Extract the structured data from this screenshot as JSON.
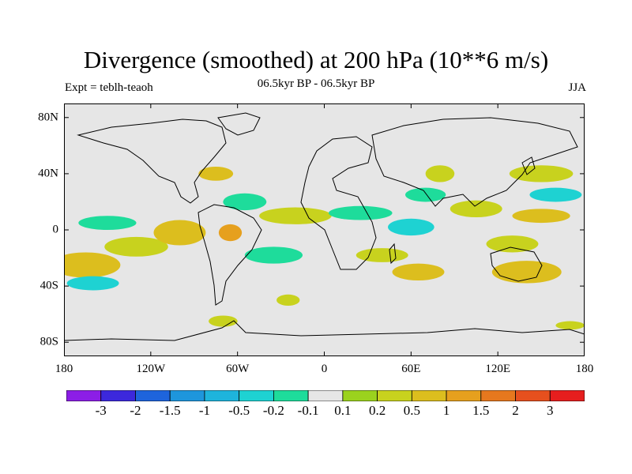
{
  "title": "Divergence (smoothed) at 200 hPa (10**6 m/s)",
  "subtitle": "06.5kyr BP - 06.5kyr BP",
  "left_label": "Expt = teblh-teaoh",
  "right_label": "JJA",
  "lat_ticks": [
    {
      "label": "80N",
      "lat": 80
    },
    {
      "label": "40N",
      "lat": 40
    },
    {
      "label": "0",
      "lat": 0
    },
    {
      "label": "40S",
      "lat": -40
    },
    {
      "label": "80S",
      "lat": -80
    }
  ],
  "lon_ticks": [
    {
      "label": "180",
      "lon": -180
    },
    {
      "label": "120W",
      "lon": -120
    },
    {
      "label": "60W",
      "lon": -60
    },
    {
      "label": "0",
      "lon": 0
    },
    {
      "label": "60E",
      "lon": 60
    },
    {
      "label": "120E",
      "lon": 120
    },
    {
      "label": "180",
      "lon": 180
    }
  ],
  "colorbar": {
    "colors": [
      "#8c1ee6",
      "#3c28dc",
      "#1e64dc",
      "#1e96dc",
      "#1eb4dc",
      "#1ed2d2",
      "#1edc9b",
      "#e6e6e6",
      "#9bd21e",
      "#c8d21e",
      "#dcbe1e",
      "#e6a01e",
      "#e6781e",
      "#e6501e",
      "#e61e1e"
    ],
    "labels": [
      "-3",
      "-2",
      "-1.5",
      "-1",
      "-0.5",
      "-0.2",
      "-0.1",
      "0.1",
      "0.2",
      "0.5",
      "1",
      "1.5",
      "2",
      "3"
    ]
  },
  "field_blobs": [
    {
      "lon": -165,
      "lat": -25,
      "rx": 24,
      "ry": 9,
      "level": "0.5"
    },
    {
      "lon": -130,
      "lat": -12,
      "rx": 22,
      "ry": 7,
      "level": "0.2"
    },
    {
      "lon": -100,
      "lat": -2,
      "rx": 18,
      "ry": 9,
      "level": "0.5"
    },
    {
      "lon": -65,
      "lat": -2,
      "rx": 8,
      "ry": 6,
      "level": "1"
    },
    {
      "lon": -150,
      "lat": 5,
      "rx": 20,
      "ry": 5,
      "level": "-0.2"
    },
    {
      "lon": -160,
      "lat": -38,
      "rx": 18,
      "ry": 5,
      "level": "-0.5"
    },
    {
      "lon": -75,
      "lat": 40,
      "rx": 12,
      "ry": 5,
      "level": "0.5"
    },
    {
      "lon": -55,
      "lat": 20,
      "rx": 15,
      "ry": 6,
      "level": "-0.2"
    },
    {
      "lon": -20,
      "lat": 10,
      "rx": 25,
      "ry": 6,
      "level": "0.2"
    },
    {
      "lon": -35,
      "lat": -18,
      "rx": 20,
      "ry": 6,
      "level": "-0.2"
    },
    {
      "lon": -25,
      "lat": -50,
      "rx": 8,
      "ry": 4,
      "level": "0.2"
    },
    {
      "lon": 25,
      "lat": 12,
      "rx": 22,
      "ry": 5,
      "level": "-0.2"
    },
    {
      "lon": 40,
      "lat": -18,
      "rx": 18,
      "ry": 5,
      "level": "0.2"
    },
    {
      "lon": 65,
      "lat": -30,
      "rx": 18,
      "ry": 6,
      "level": "0.5"
    },
    {
      "lon": 60,
      "lat": 2,
      "rx": 16,
      "ry": 6,
      "level": "-0.5"
    },
    {
      "lon": 70,
      "lat": 25,
      "rx": 14,
      "ry": 5,
      "level": "-0.2"
    },
    {
      "lon": 80,
      "lat": 40,
      "rx": 10,
      "ry": 6,
      "level": "0.2"
    },
    {
      "lon": 105,
      "lat": 15,
      "rx": 18,
      "ry": 6,
      "level": "0.2"
    },
    {
      "lon": 130,
      "lat": -10,
      "rx": 18,
      "ry": 6,
      "level": "0.2"
    },
    {
      "lon": 150,
      "lat": 40,
      "rx": 22,
      "ry": 6,
      "level": "0.2"
    },
    {
      "lon": 160,
      "lat": 25,
      "rx": 18,
      "ry": 5,
      "level": "-0.5"
    },
    {
      "lon": 150,
      "lat": 10,
      "rx": 20,
      "ry": 5,
      "level": "0.5"
    },
    {
      "lon": 140,
      "lat": -30,
      "rx": 24,
      "ry": 8,
      "level": "0.5"
    },
    {
      "lon": 170,
      "lat": -68,
      "rx": 10,
      "ry": 3,
      "level": "0.2"
    },
    {
      "lon": -70,
      "lat": -65,
      "rx": 10,
      "ry": 4,
      "level": "0.2"
    }
  ]
}
